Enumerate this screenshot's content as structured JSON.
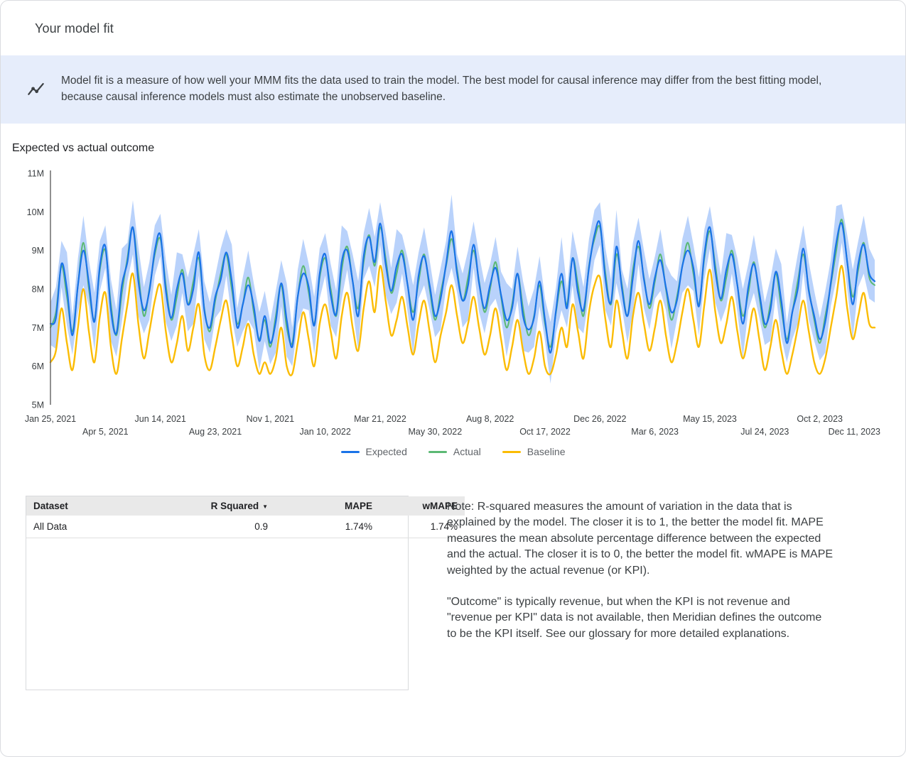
{
  "page": {
    "title": "Your model fit"
  },
  "banner": {
    "icon": "insights-line-chart-icon",
    "text": "Model fit is a measure of how well your MMM fits the data used to train the model. The best model for causal inference may differ from the best fitting model, because causal inference models must also estimate the unobserved baseline."
  },
  "section_title": "Expected vs actual outcome",
  "chart_data": {
    "type": "line",
    "title": "Expected vs actual outcome",
    "unit": "millions",
    "ylim": [
      5,
      11
    ],
    "grid": false,
    "legend_position": "bottom",
    "y_tick_labels": [
      "5M",
      "6M",
      "7M",
      "8M",
      "9M",
      "10M",
      "11M"
    ],
    "x_ticks_row1": {
      "indices": [
        0,
        20,
        40,
        60,
        80,
        100,
        120,
        140
      ],
      "labels": [
        "Jan 25, 2021",
        "Jun 14, 2021",
        "Nov 1, 2021",
        "Mar 21, 2022",
        "Aug 8, 2022",
        "Dec 26, 2022",
        "May 15, 2023",
        "Oct 2, 2023"
      ]
    },
    "x_ticks_row2": {
      "indices": [
        10,
        30,
        50,
        70,
        90,
        110,
        130,
        150
      ],
      "labels": [
        "Apr 5, 2021",
        "Aug 23, 2021",
        "Jan 10, 2022",
        "May 30, 2022",
        "Oct 17, 2022",
        "Mar 6, 2023",
        "Jul 24, 2023",
        "Dec 11, 2023"
      ]
    },
    "series": [
      {
        "name": "Expected",
        "color": "#1A73E8",
        "values": [
          7.1,
          7.25,
          8.65,
          8.0,
          6.8,
          8.1,
          9.0,
          8.15,
          7.15,
          8.6,
          9.1,
          7.45,
          6.85,
          8.1,
          8.7,
          9.6,
          8.2,
          7.45,
          7.95,
          9.0,
          9.4,
          7.95,
          7.25,
          8.0,
          8.4,
          7.6,
          8.0,
          8.95,
          7.45,
          7.0,
          7.8,
          8.25,
          8.95,
          8.2,
          7.0,
          7.6,
          8.1,
          7.55,
          6.65,
          7.3,
          6.6,
          7.15,
          8.15,
          7.2,
          6.5,
          7.8,
          8.4,
          8.05,
          7.05,
          8.4,
          8.9,
          7.85,
          7.35,
          8.7,
          9.0,
          8.2,
          7.3,
          8.85,
          9.35,
          8.7,
          9.7,
          8.65,
          7.95,
          8.6,
          8.9,
          8.1,
          7.2,
          8.35,
          8.85,
          8.1,
          7.3,
          7.75,
          8.65,
          9.5,
          8.4,
          7.7,
          8.1,
          9.15,
          8.15,
          7.5,
          8.1,
          8.55,
          7.85,
          7.2,
          7.5,
          8.4,
          7.3,
          6.95,
          7.25,
          8.2,
          7.2,
          6.35,
          7.45,
          8.4,
          7.5,
          8.8,
          7.9,
          7.45,
          8.55,
          9.4,
          9.7,
          8.25,
          7.65,
          9.1,
          8.0,
          7.3,
          8.3,
          9.25,
          8.25,
          7.6,
          8.3,
          8.75,
          8.05,
          7.4,
          7.7,
          8.6,
          9.0,
          8.55,
          7.55,
          8.9,
          9.6,
          8.45,
          7.75,
          8.5,
          8.9,
          8.1,
          7.1,
          8.05,
          8.65,
          7.9,
          7.1,
          7.45,
          8.45,
          7.7,
          6.6,
          7.4,
          8.0,
          9.05,
          7.95,
          7.3,
          6.7,
          7.15,
          8.15,
          9.2,
          9.7,
          8.7,
          7.6,
          8.65,
          9.15,
          8.4,
          8.2
        ]
      },
      {
        "name": "Actual",
        "color": "#5BB974",
        "values": [
          7.0,
          7.4,
          8.6,
          7.8,
          6.9,
          8.1,
          9.2,
          8.0,
          7.2,
          8.5,
          9.0,
          7.6,
          6.8,
          7.9,
          8.8,
          9.6,
          8.4,
          7.3,
          8.0,
          8.9,
          9.3,
          8.1,
          7.2,
          7.8,
          8.5,
          7.6,
          8.2,
          8.8,
          7.5,
          6.9,
          7.7,
          8.4,
          8.9,
          8.0,
          7.1,
          7.6,
          8.3,
          7.4,
          6.7,
          7.2,
          6.5,
          7.3,
          8.1,
          7.0,
          6.6,
          7.8,
          8.6,
          7.9,
          7.1,
          8.3,
          8.8,
          8.0,
          7.3,
          8.5,
          9.1,
          8.2,
          7.5,
          8.7,
          9.4,
          8.6,
          9.6,
          8.8,
          7.9,
          8.4,
          9.0,
          8.1,
          7.4,
          8.2,
          8.9,
          8.0,
          7.2,
          7.9,
          8.6,
          9.3,
          8.5,
          7.7,
          8.3,
          9.0,
          8.2,
          7.4,
          8.0,
          8.7,
          7.8,
          7.0,
          7.6,
          8.4,
          7.5,
          6.8,
          7.3,
          8.1,
          7.1,
          6.5,
          7.4,
          8.2,
          7.6,
          8.8,
          8.1,
          7.3,
          8.6,
          9.3,
          9.6,
          8.4,
          7.6,
          8.9,
          8.1,
          7.3,
          8.5,
          9.1,
          8.3,
          7.5,
          8.2,
          8.9,
          8.0,
          7.2,
          7.8,
          8.6,
          9.2,
          8.4,
          7.6,
          8.8,
          9.5,
          8.6,
          7.7,
          8.3,
          9.0,
          8.1,
          7.3,
          7.9,
          8.7,
          7.8,
          7.0,
          7.6,
          8.4,
          7.5,
          6.7,
          7.4,
          8.2,
          8.9,
          8.0,
          7.2,
          6.6,
          7.3,
          8.1,
          9.0,
          9.8,
          8.7,
          7.8,
          8.5,
          9.2,
          8.3,
          8.1
        ]
      },
      {
        "name": "Baseline",
        "color": "#FBBC04",
        "values": [
          6.1,
          6.4,
          7.5,
          6.6,
          5.9,
          7.0,
          8.0,
          6.9,
          6.1,
          7.3,
          7.9,
          6.5,
          5.8,
          6.7,
          7.6,
          8.4,
          7.1,
          6.2,
          6.9,
          7.7,
          8.1,
          6.9,
          6.1,
          6.6,
          7.3,
          6.4,
          7.0,
          7.6,
          6.3,
          5.9,
          6.5,
          7.2,
          7.7,
          6.8,
          6.0,
          6.5,
          7.1,
          6.3,
          5.8,
          6.1,
          5.8,
          6.2,
          7.0,
          6.0,
          5.8,
          6.6,
          7.4,
          6.7,
          6.0,
          7.1,
          7.6,
          6.9,
          6.2,
          7.3,
          7.9,
          7.0,
          6.4,
          7.5,
          8.2,
          7.4,
          8.6,
          7.7,
          6.8,
          7.2,
          7.8,
          7.0,
          6.3,
          7.1,
          7.7,
          6.9,
          6.1,
          6.8,
          7.4,
          8.1,
          7.3,
          6.6,
          7.1,
          7.8,
          7.0,
          6.3,
          6.8,
          7.5,
          6.7,
          5.9,
          6.5,
          7.2,
          6.4,
          5.8,
          6.2,
          6.9,
          6.0,
          5.8,
          6.3,
          7.0,
          6.5,
          7.6,
          6.9,
          6.2,
          7.4,
          8.1,
          8.3,
          7.2,
          6.5,
          7.7,
          6.9,
          6.2,
          7.3,
          7.9,
          7.1,
          6.4,
          7.0,
          7.7,
          6.8,
          6.1,
          6.6,
          7.4,
          8.0,
          7.2,
          6.5,
          7.6,
          8.5,
          7.4,
          6.6,
          7.1,
          7.8,
          6.9,
          6.2,
          6.8,
          7.5,
          6.7,
          5.9,
          6.5,
          7.2,
          6.4,
          5.8,
          6.3,
          7.0,
          7.7,
          6.9,
          6.1,
          5.8,
          6.2,
          7.0,
          7.8,
          8.6,
          7.5,
          6.7,
          7.3,
          7.9,
          7.1,
          7.0
        ]
      }
    ],
    "confidence_band": {
      "applies_to": "Expected",
      "color": "#A8C7FA",
      "opacity": 0.8,
      "half_width_pattern": [
        0.55,
        0.8,
        0.6,
        0.95,
        0.5,
        0.7,
        0.9,
        0.6,
        0.75,
        0.65
      ]
    }
  },
  "table": {
    "columns": [
      {
        "label": "Dataset",
        "align": "left"
      },
      {
        "label": "R Squared",
        "align": "right",
        "sort_icon": "▼"
      },
      {
        "label": "MAPE",
        "align": "right"
      },
      {
        "label": "wMAPE",
        "align": "right"
      }
    ],
    "rows": [
      [
        "All Data",
        "0.9",
        "1.74%",
        "1.74%"
      ]
    ]
  },
  "notes": {
    "p1": "Note: R-squared measures the amount of variation in the data that is explained by the model. The closer it is to 1, the better the model fit. MAPE measures the mean absolute percentage difference between the expected and the actual. The closer it is to 0, the better the model fit. wMAPE is MAPE weighted by the actual revenue (or KPI).",
    "p2": "\"Outcome\" is typically revenue, but when the KPI is not revenue and \"revenue per KPI\" data is not available, then Meridian defines the outcome to be the KPI itself. See our glossary for more detailed explanations."
  }
}
